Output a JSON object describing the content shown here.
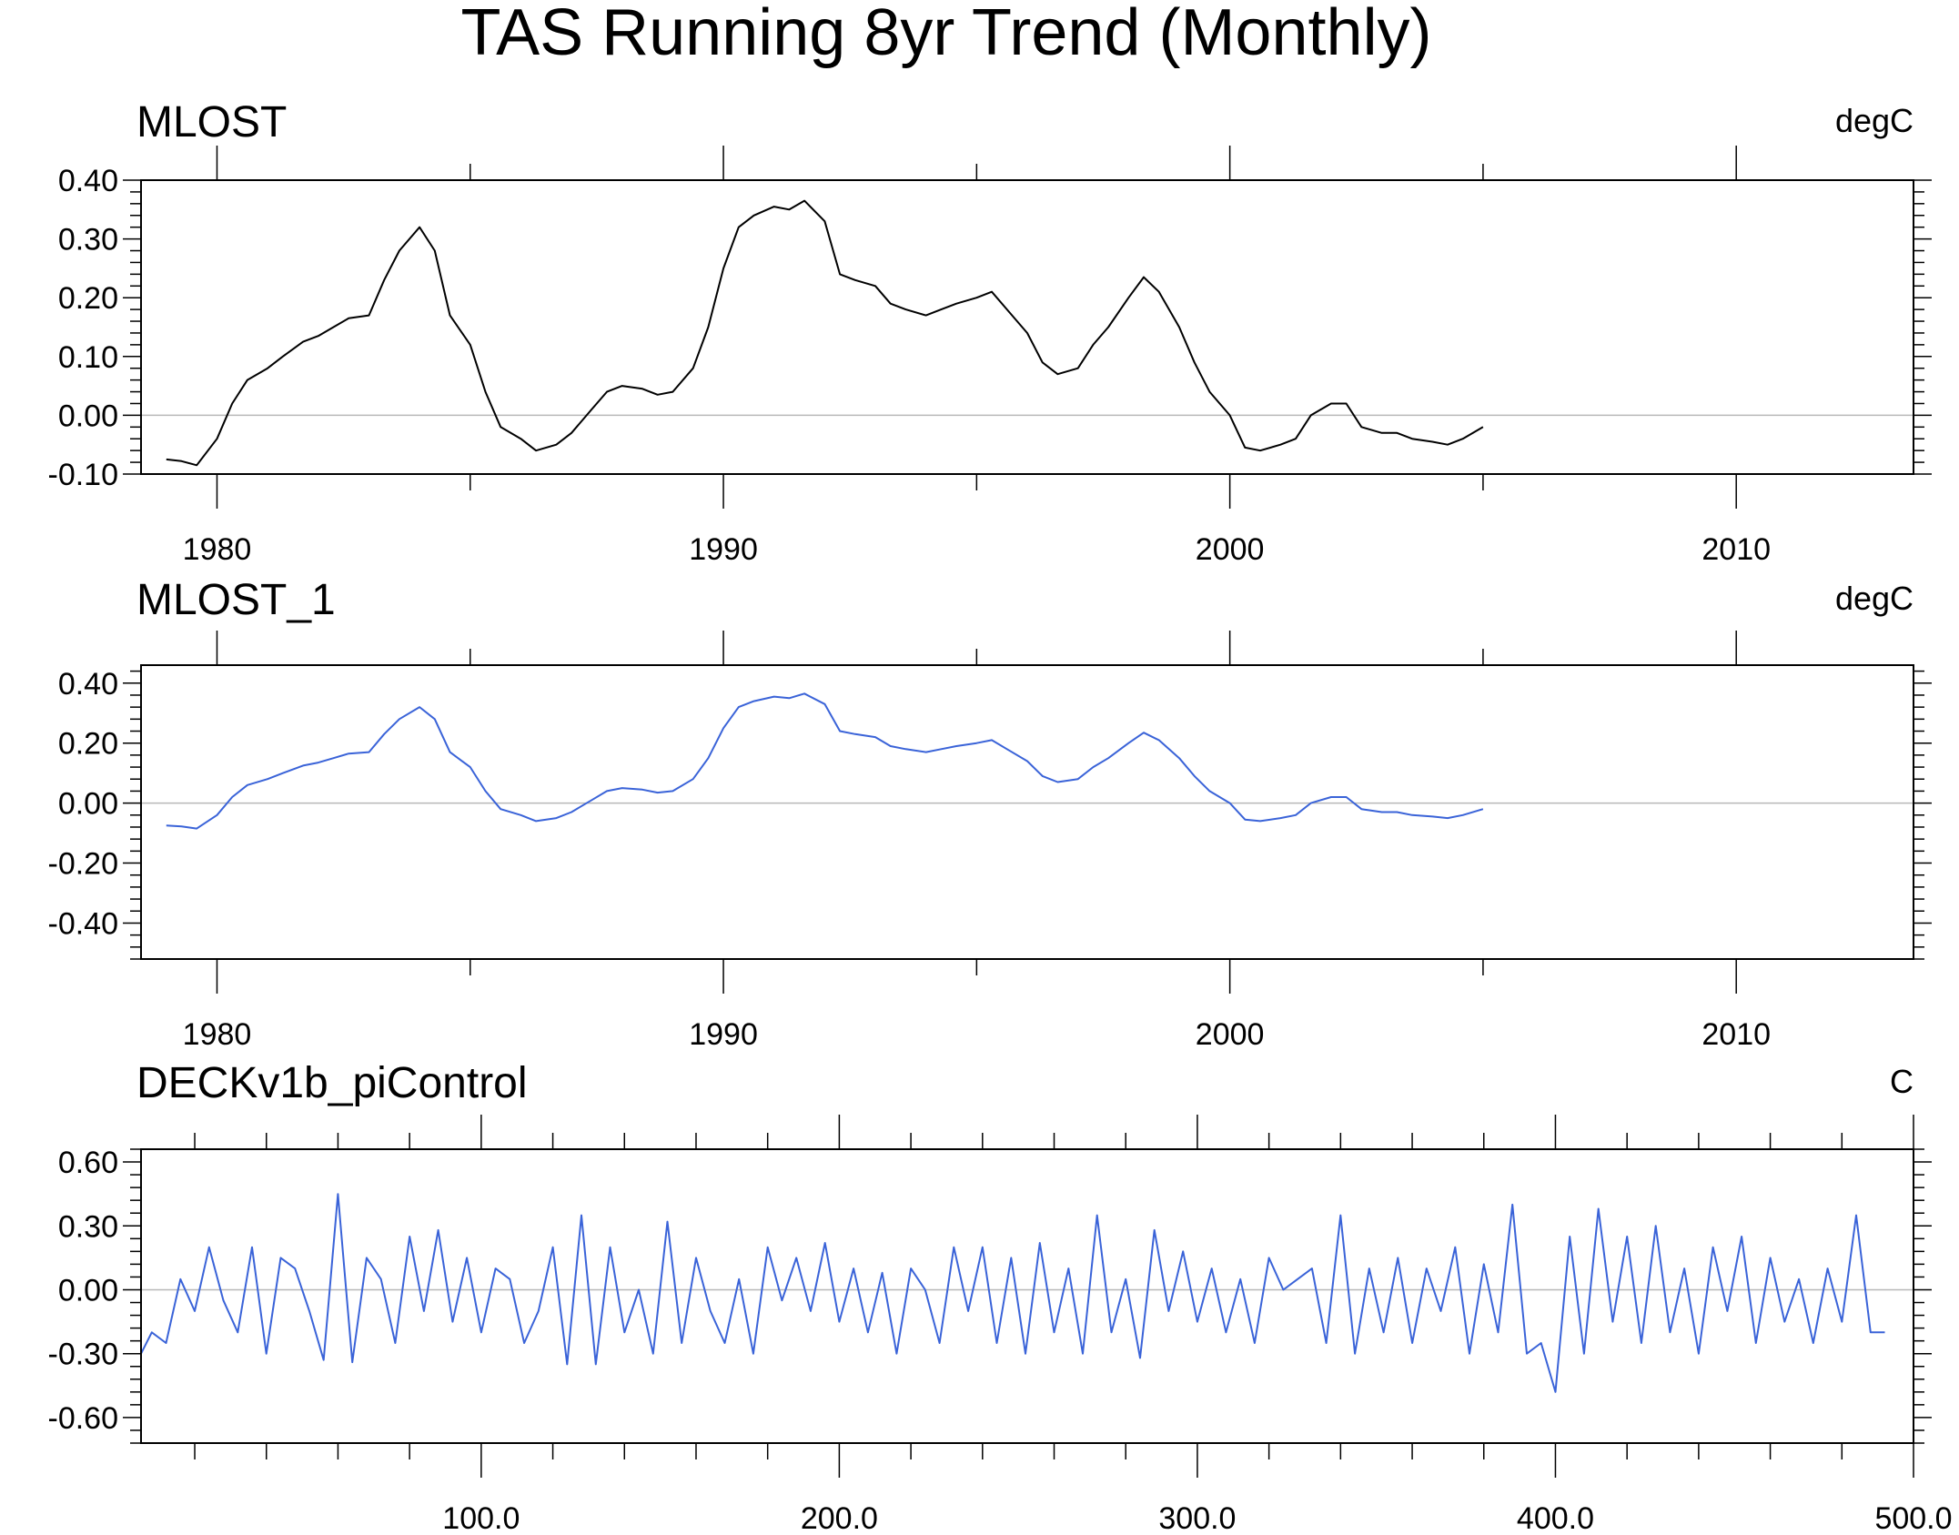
{
  "page_title": "TAS Running 8yr Trend (Monthly)",
  "chart_data": [
    {
      "type": "line",
      "title": "MLOST",
      "units": "degC",
      "xlabel": "",
      "ylabel": "",
      "xlim": [
        1978.5,
        2013.5
      ],
      "ylim": [
        -0.1,
        0.4
      ],
      "x_ticks": [
        1980,
        1990,
        2000,
        2010
      ],
      "y_ticks": [
        -0.1,
        0.0,
        0.1,
        0.2,
        0.3,
        0.4
      ],
      "x_tick_labels": [
        "1980",
        "1990",
        "2000",
        "2010"
      ],
      "y_tick_labels": [
        "-0.10",
        "0.00",
        "0.10",
        "0.20",
        "0.30",
        "0.40"
      ],
      "zero_line": true,
      "series": [
        {
          "color": "#000000",
          "x": [
            1979.0,
            1979.3,
            1979.6,
            1980.0,
            1980.3,
            1980.6,
            1981.0,
            1981.3,
            1981.7,
            1982.0,
            1982.3,
            1982.6,
            1983.0,
            1983.3,
            1983.6,
            1984.0,
            1984.3,
            1984.6,
            1985.0,
            1985.3,
            1985.6,
            1986.0,
            1986.3,
            1986.7,
            1987.0,
            1987.4,
            1987.7,
            1988.0,
            1988.4,
            1988.7,
            1989.0,
            1989.4,
            1989.7,
            1990.0,
            1990.3,
            1990.6,
            1991.0,
            1991.3,
            1991.6,
            1992.0,
            1992.3,
            1992.6,
            1993.0,
            1993.3,
            1993.6,
            1994.0,
            1994.3,
            1994.6,
            1995.0,
            1995.3,
            1995.6,
            1996.0,
            1996.3,
            1996.6,
            1997.0,
            1997.3,
            1997.6,
            1998.0,
            1998.3,
            1998.6,
            1999.0,
            1999.3,
            1999.6,
            2000.0,
            2000.3,
            2000.6,
            2001.0,
            2001.3,
            2001.6,
            2002.0,
            2002.3,
            2002.6,
            2003.0,
            2003.3,
            2003.6,
            2004.0,
            2004.3,
            2004.6,
            2005.0
          ],
          "y": [
            -0.075,
            -0.078,
            -0.085,
            -0.04,
            0.02,
            0.06,
            0.08,
            0.1,
            0.125,
            0.135,
            0.15,
            0.165,
            0.17,
            0.23,
            0.28,
            0.32,
            0.28,
            0.17,
            0.12,
            0.04,
            -0.02,
            -0.04,
            -0.06,
            -0.05,
            -0.03,
            0.01,
            0.04,
            0.05,
            0.045,
            0.035,
            0.04,
            0.08,
            0.15,
            0.25,
            0.32,
            0.34,
            0.355,
            0.35,
            0.365,
            0.33,
            0.24,
            0.23,
            0.22,
            0.19,
            0.18,
            0.17,
            0.18,
            0.19,
            0.2,
            0.21,
            0.18,
            0.14,
            0.09,
            0.07,
            0.08,
            0.12,
            0.15,
            0.2,
            0.235,
            0.21,
            0.15,
            0.09,
            0.04,
            0.0,
            -0.055,
            -0.06,
            -0.05,
            -0.04,
            0.0,
            0.02,
            0.02,
            -0.02,
            -0.03,
            -0.03,
            -0.04,
            -0.045,
            -0.05,
            -0.04,
            -0.02
          ]
        }
      ]
    },
    {
      "type": "line",
      "title": "MLOST_1",
      "units": "degC",
      "xlabel": "",
      "ylabel": "",
      "xlim": [
        1978.5,
        2013.5
      ],
      "ylim": [
        -0.52,
        0.46
      ],
      "x_ticks": [
        1980,
        1990,
        2000,
        2010
      ],
      "y_ticks": [
        -0.4,
        -0.2,
        0.0,
        0.2,
        0.4
      ],
      "x_tick_labels": [
        "1980",
        "1990",
        "2000",
        "2010"
      ],
      "y_tick_labels": [
        "-0.40",
        "-0.20",
        "0.00",
        "0.20",
        "0.40"
      ],
      "zero_line": true,
      "series": [
        {
          "color": "#3a63d8",
          "x": [
            1979.0,
            1979.3,
            1979.6,
            1980.0,
            1980.3,
            1980.6,
            1981.0,
            1981.3,
            1981.7,
            1982.0,
            1982.3,
            1982.6,
            1983.0,
            1983.3,
            1983.6,
            1984.0,
            1984.3,
            1984.6,
            1985.0,
            1985.3,
            1985.6,
            1986.0,
            1986.3,
            1986.7,
            1987.0,
            1987.4,
            1987.7,
            1988.0,
            1988.4,
            1988.7,
            1989.0,
            1989.4,
            1989.7,
            1990.0,
            1990.3,
            1990.6,
            1991.0,
            1991.3,
            1991.6,
            1992.0,
            1992.3,
            1992.6,
            1993.0,
            1993.3,
            1993.6,
            1994.0,
            1994.3,
            1994.6,
            1995.0,
            1995.3,
            1995.6,
            1996.0,
            1996.3,
            1996.6,
            1997.0,
            1997.3,
            1997.6,
            1998.0,
            1998.3,
            1998.6,
            1999.0,
            1999.3,
            1999.6,
            2000.0,
            2000.3,
            2000.6,
            2001.0,
            2001.3,
            2001.6,
            2002.0,
            2002.3,
            2002.6,
            2003.0,
            2003.3,
            2003.6,
            2004.0,
            2004.3,
            2004.6,
            2005.0
          ],
          "y": [
            -0.075,
            -0.078,
            -0.085,
            -0.04,
            0.02,
            0.06,
            0.08,
            0.1,
            0.125,
            0.135,
            0.15,
            0.165,
            0.17,
            0.23,
            0.28,
            0.32,
            0.28,
            0.17,
            0.12,
            0.04,
            -0.02,
            -0.04,
            -0.06,
            -0.05,
            -0.03,
            0.01,
            0.04,
            0.05,
            0.045,
            0.035,
            0.04,
            0.08,
            0.15,
            0.25,
            0.32,
            0.34,
            0.355,
            0.35,
            0.365,
            0.33,
            0.24,
            0.23,
            0.22,
            0.19,
            0.18,
            0.17,
            0.18,
            0.19,
            0.2,
            0.21,
            0.18,
            0.14,
            0.09,
            0.07,
            0.08,
            0.12,
            0.15,
            0.2,
            0.235,
            0.21,
            0.15,
            0.09,
            0.04,
            0.0,
            -0.055,
            -0.06,
            -0.05,
            -0.04,
            0.0,
            0.02,
            0.02,
            -0.02,
            -0.03,
            -0.03,
            -0.04,
            -0.045,
            -0.05,
            -0.04,
            -0.02
          ]
        }
      ]
    },
    {
      "type": "line",
      "title": "DECKv1b_piControl",
      "units": "C",
      "xlabel": "",
      "ylabel": "",
      "xlim": [
        5,
        500
      ],
      "ylim": [
        -0.72,
        0.66
      ],
      "x_ticks": [
        100,
        200,
        300,
        400,
        500
      ],
      "y_ticks": [
        -0.6,
        -0.3,
        0.0,
        0.3,
        0.6
      ],
      "x_tick_labels": [
        "100.0",
        "200.0",
        "300.0",
        "400.0",
        "500.0"
      ],
      "y_tick_labels": [
        "-0.60",
        "-0.30",
        "0.00",
        "0.30",
        "0.60"
      ],
      "zero_line": true,
      "series": [
        {
          "color": "#3a63d8",
          "x": [
            5,
            8,
            12,
            16,
            20,
            24,
            28,
            32,
            36,
            40,
            44,
            48,
            52,
            56,
            60,
            64,
            68,
            72,
            76,
            80,
            84,
            88,
            92,
            96,
            100,
            104,
            108,
            112,
            116,
            120,
            124,
            128,
            132,
            136,
            140,
            144,
            148,
            152,
            156,
            160,
            164,
            168,
            172,
            176,
            180,
            184,
            188,
            192,
            196,
            200,
            204,
            208,
            212,
            216,
            220,
            224,
            228,
            232,
            236,
            240,
            244,
            248,
            252,
            256,
            260,
            264,
            268,
            272,
            276,
            280,
            284,
            288,
            292,
            296,
            300,
            304,
            308,
            312,
            316,
            320,
            324,
            328,
            332,
            336,
            340,
            344,
            348,
            352,
            356,
            360,
            364,
            368,
            372,
            376,
            380,
            384,
            388,
            392,
            396,
            400,
            404,
            408,
            412,
            416,
            420,
            424,
            428,
            432,
            436,
            440,
            444,
            448,
            452,
            456,
            460,
            464,
            468,
            472,
            476,
            480,
            484,
            488,
            492
          ],
          "y": [
            -0.3,
            -0.2,
            -0.25,
            0.05,
            -0.1,
            0.2,
            -0.05,
            -0.2,
            0.2,
            -0.3,
            0.15,
            0.1,
            -0.1,
            -0.33,
            0.45,
            -0.34,
            0.15,
            0.05,
            -0.25,
            0.25,
            -0.1,
            0.28,
            -0.15,
            0.15,
            -0.2,
            0.1,
            0.05,
            -0.25,
            -0.1,
            0.2,
            -0.35,
            0.35,
            -0.35,
            0.2,
            -0.2,
            0.0,
            -0.3,
            0.32,
            -0.25,
            0.15,
            -0.1,
            -0.25,
            0.05,
            -0.3,
            0.2,
            -0.05,
            0.15,
            -0.1,
            0.22,
            -0.15,
            0.1,
            -0.2,
            0.08,
            -0.3,
            0.1,
            0.0,
            -0.25,
            0.2,
            -0.1,
            0.2,
            -0.25,
            0.15,
            -0.3,
            0.22,
            -0.2,
            0.1,
            -0.3,
            0.35,
            -0.2,
            0.05,
            -0.32,
            0.28,
            -0.1,
            0.18,
            -0.15,
            0.1,
            -0.2,
            0.05,
            -0.25,
            0.15,
            0.0,
            0.05,
            0.1,
            -0.25,
            0.35,
            -0.3,
            0.1,
            -0.2,
            0.15,
            -0.25,
            0.1,
            -0.1,
            0.2,
            -0.3,
            0.12,
            -0.2,
            0.4,
            -0.3,
            -0.25,
            -0.48,
            0.25,
            -0.3,
            0.38,
            -0.15,
            0.25,
            -0.25,
            0.3,
            -0.2,
            0.1,
            -0.3,
            0.2,
            -0.1,
            0.25,
            -0.25,
            0.15,
            -0.15,
            0.05,
            -0.25,
            0.1,
            -0.15,
            0.35,
            -0.2,
            -0.2
          ]
        }
      ]
    }
  ]
}
